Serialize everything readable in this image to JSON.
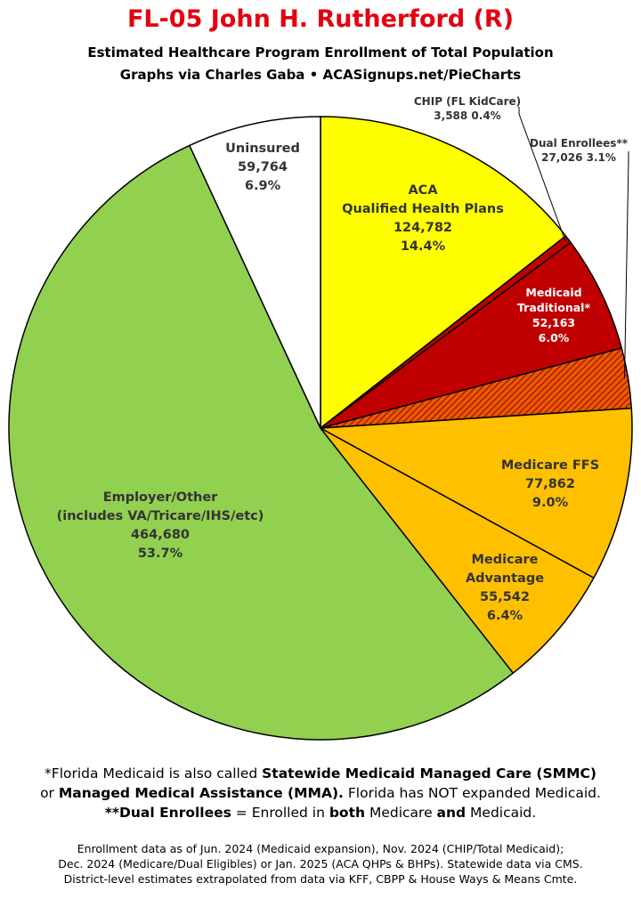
{
  "header": {
    "title": "FL-05 John H. Rutherford (R)",
    "subtitle_line1": "Estimated Healthcare Program Enrollment of Total Population",
    "subtitle_line2": "Graphs via Charles Gaba  •  ACASignups.net/PieCharts"
  },
  "chart_data": {
    "type": "pie",
    "title": "FL-05 John H. Rutherford (R)",
    "subtitle": "Estimated Healthcare Program Enrollment of Total Population",
    "slices": [
      {
        "key": "aca",
        "label": "ACA Qualified Health Plans",
        "lines": [
          "ACA",
          "Qualified Health Plans"
        ],
        "value": 124782,
        "value_text": "124,782",
        "percent": 14.4,
        "percent_text": "14.4%",
        "color": "#ffff00"
      },
      {
        "key": "chip",
        "label": "CHIP (FL KidCare)",
        "lines": [
          "CHIP (FL KidCare)"
        ],
        "value": 3588,
        "value_text": "3,588",
        "percent": 0.4,
        "percent_text": "0.4%",
        "color": "#c00000"
      },
      {
        "key": "medicaid",
        "label": "Medicaid Traditional*",
        "lines": [
          "Medicaid",
          "Traditional*"
        ],
        "value": 52163,
        "value_text": "52,163",
        "percent": 6.0,
        "percent_text": "6.0%",
        "color": "#c00000"
      },
      {
        "key": "dual",
        "label": "Dual Enrollees**",
        "lines": [
          "Dual Enrollees**"
        ],
        "value": 27026,
        "value_text": "27,026",
        "percent": 3.1,
        "percent_text": "3.1%",
        "color": "#e06000"
      },
      {
        "key": "medicare_ffs",
        "label": "Medicare FFS",
        "lines": [
          "Medicare FFS"
        ],
        "value": 77862,
        "value_text": "77,862",
        "percent": 9.0,
        "percent_text": "9.0%",
        "color": "#ffc000"
      },
      {
        "key": "medicare_adv",
        "label": "Medicare Advantage",
        "lines": [
          "Medicare",
          "Advantage"
        ],
        "value": 55542,
        "value_text": "55,542",
        "percent": 6.4,
        "percent_text": "6.4%",
        "color": "#ffc000"
      },
      {
        "key": "employer",
        "label": "Employer/Other (includes VA/Tricare/IHS/etc)",
        "lines": [
          "Employer/Other",
          "(includes VA/Tricare/IHS/etc)"
        ],
        "value": 464680,
        "value_text": "464,680",
        "percent": 53.7,
        "percent_text": "53.7%",
        "color": "#92d050"
      },
      {
        "key": "uninsured",
        "label": "Uninsured",
        "lines": [
          "Uninsured"
        ],
        "value": 59764,
        "value_text": "59,764",
        "percent": 6.9,
        "percent_text": "6.9%",
        "color": "#ffffff"
      }
    ]
  },
  "footnotes": {
    "l1_a": "*Florida Medicaid is also called ",
    "l1_b": "Statewide Medicaid Managed Care (SMMC)",
    "l2_a": "or ",
    "l2_b": "Managed Medical Assistance (MMA).",
    "l2_c": " Florida has NOT expanded Medicaid.",
    "l3_a": "**Dual Enrollees",
    "l3_b": " = Enrolled in ",
    "l3_c": "both",
    "l3_d": " Medicare ",
    "l3_e": "and",
    "l3_f": " Medicaid.",
    "src1": "Enrollment data as of Jun. 2024 (Medicaid expansion), Nov. 2024 (CHIP/Total Medicaid);",
    "src2": "Dec. 2024 (Medicare/Dual Eligibles) or Jan. 2025 (ACA QHPs & BHPs). Statewide data via CMS.",
    "src3": "District-level estimates extrapolated from data via KFF, CBPP & House Ways & Means Cmte."
  }
}
